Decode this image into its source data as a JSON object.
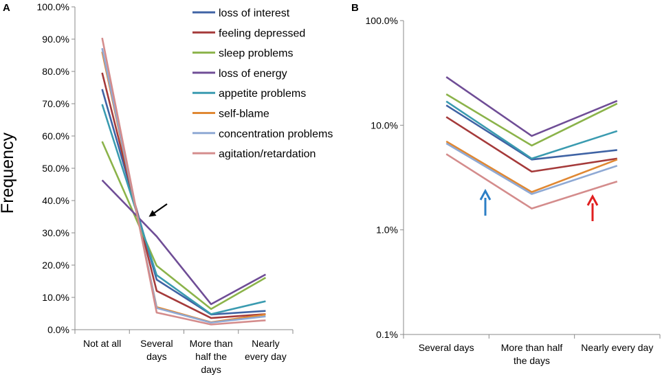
{
  "panel_labels": {
    "a": "A",
    "b": "B"
  },
  "legend": {
    "entries": [
      "loss of interest",
      "feeling depressed",
      "sleep problems",
      "loss of energy",
      "appetite problems",
      "self-blame",
      "concentration problems",
      "agitation/retardation"
    ]
  },
  "chart_data": [
    {
      "type": "line",
      "panel": "A",
      "ylabel": "Frequency",
      "xlabel": "",
      "ylim": [
        0,
        100
      ],
      "yticks": [
        "0.0%",
        "10.0%",
        "20.0%",
        "30.0%",
        "40.0%",
        "50.0%",
        "60.0%",
        "70.0%",
        "80.0%",
        "90.0%",
        "100.0%"
      ],
      "categories": [
        [
          "Not at all"
        ],
        [
          "Several",
          "days"
        ],
        [
          "More than",
          "half the",
          "days"
        ],
        [
          "Nearly",
          "every day"
        ]
      ],
      "series": [
        {
          "name": "loss of interest",
          "color": "#3f63a4",
          "values": [
            74.5,
            15.5,
            4.7,
            5.8
          ]
        },
        {
          "name": "feeling depressed",
          "color": "#a53a3a",
          "values": [
            79.6,
            12.0,
            3.6,
            4.8
          ]
        },
        {
          "name": "sleep problems",
          "color": "#8bb34a",
          "values": [
            58.3,
            19.8,
            6.4,
            16.1
          ]
        },
        {
          "name": "loss of energy",
          "color": "#6f4d96",
          "values": [
            46.3,
            28.9,
            7.9,
            17.1
          ]
        },
        {
          "name": "appetite problems",
          "color": "#3a9bb0",
          "values": [
            69.8,
            16.9,
            4.8,
            8.8
          ]
        },
        {
          "name": "self-blame",
          "color": "#e08833",
          "values": [
            86.1,
            7.0,
            2.3,
            4.7
          ]
        },
        {
          "name": "concentration problems",
          "color": "#8fa9d4",
          "values": [
            87.2,
            6.7,
            2.2,
            4.1
          ]
        },
        {
          "name": "agitation/retardation",
          "color": "#d48c8c",
          "values": [
            90.4,
            5.3,
            1.6,
            2.9
          ]
        }
      ],
      "annotations": [
        {
          "type": "arrow",
          "color": "#000000",
          "target": "lines crossing between Not at all and Several days"
        }
      ]
    },
    {
      "type": "line",
      "panel": "B",
      "yscale": "log",
      "ylabel": "",
      "xlabel": "",
      "ylim": [
        0.1,
        100
      ],
      "yticks": [
        "0.1%",
        "1.0%",
        "10.0%",
        "100.0%"
      ],
      "categories": [
        [
          "Several days"
        ],
        [
          "More than half",
          "the days"
        ],
        [
          "Nearly every day"
        ]
      ],
      "series": [
        {
          "name": "loss of interest",
          "color": "#3f63a4",
          "values": [
            15.5,
            4.7,
            5.8
          ]
        },
        {
          "name": "feeling depressed",
          "color": "#a53a3a",
          "values": [
            12.0,
            3.6,
            4.8
          ]
        },
        {
          "name": "sleep problems",
          "color": "#8bb34a",
          "values": [
            19.8,
            6.4,
            16.1
          ]
        },
        {
          "name": "loss of energy",
          "color": "#6f4d96",
          "values": [
            28.9,
            7.9,
            17.1
          ]
        },
        {
          "name": "appetite problems",
          "color": "#3a9bb0",
          "values": [
            16.9,
            4.8,
            8.8
          ]
        },
        {
          "name": "self-blame",
          "color": "#e08833",
          "values": [
            7.0,
            2.3,
            4.7
          ]
        },
        {
          "name": "concentration problems",
          "color": "#8fa9d4",
          "values": [
            6.7,
            2.2,
            4.1
          ]
        },
        {
          "name": "agitation/retardation",
          "color": "#d48c8c",
          "values": [
            5.3,
            1.6,
            2.9
          ]
        }
      ],
      "annotations": [
        {
          "type": "arrow",
          "color": "#2c7fc6",
          "direction": "up",
          "near": "between Several days and More than half the days"
        },
        {
          "type": "arrow",
          "color": "#e01f1f",
          "direction": "up",
          "near": "between More than half the days and Nearly every day"
        }
      ]
    }
  ]
}
